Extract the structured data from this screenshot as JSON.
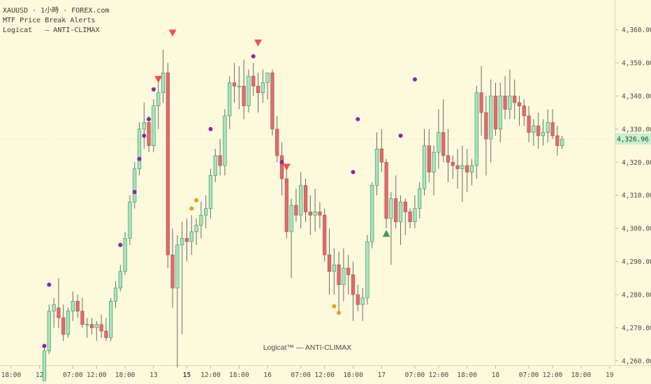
{
  "legend": {
    "symbol_line": "XAUUSD · 1小時 · FOREX.com",
    "indicator_line": "MTF Price Break Alerts",
    "logicat_line": "Logicat   — ANTI-CLIMAX"
  },
  "watermark": "Logicat™ — ANTI-CLIMAX",
  "colors": {
    "background": "#fcf9dc",
    "up": "#a7e4bd",
    "down": "#e26a6a",
    "wick": "#6b6b6b",
    "purple": "#8e24aa",
    "orange": "#f39c12",
    "red_marker": "#ef5350",
    "green_marker": "#43a047",
    "price_label_bg": "#c8f0d0"
  },
  "chart_data": {
    "type": "candlestick",
    "symbol": "XAUUSD",
    "interval": "1小時",
    "exchange": "FOREX.com",
    "ylim": [
      4253,
      4369
    ],
    "yticks": [
      4260,
      4270,
      4280,
      4290,
      4300,
      4310,
      4320,
      4330,
      4340,
      4350,
      4360
    ],
    "ytick_labels": [
      "4,260.00",
      "4,270.00",
      "4,280.00",
      "4,290.00",
      "4,300.00",
      "4,310.00",
      "4,320.00",
      "4,330.00",
      "4,340.00",
      "4,350.00",
      "4,360.00"
    ],
    "xticks": [
      {
        "label": "18:00",
        "index": -7,
        "bold": false
      },
      {
        "label": "12",
        "index": -1,
        "bold": false
      },
      {
        "label": "07:00",
        "index": 6,
        "bold": false
      },
      {
        "label": "12:00",
        "index": 11,
        "bold": false
      },
      {
        "label": "18:00",
        "index": 17,
        "bold": false
      },
      {
        "label": "13",
        "index": 23,
        "bold": false
      },
      {
        "label": "15",
        "index": 30,
        "bold": true
      },
      {
        "label": "12:00",
        "index": 35,
        "bold": false
      },
      {
        "label": "18:00",
        "index": 41,
        "bold": false
      },
      {
        "label": "16",
        "index": 47,
        "bold": false
      },
      {
        "label": "07:00",
        "index": 54,
        "bold": false
      },
      {
        "label": "12:00",
        "index": 59,
        "bold": false
      },
      {
        "label": "18:00",
        "index": 65,
        "bold": false
      },
      {
        "label": "17",
        "index": 71,
        "bold": false
      },
      {
        "label": "07:00",
        "index": 78,
        "bold": false
      },
      {
        "label": "12:00",
        "index": 83,
        "bold": false
      },
      {
        "label": "18:00",
        "index": 89,
        "bold": false
      },
      {
        "label": "18",
        "index": 95,
        "bold": false
      },
      {
        "label": "07:00",
        "index": 102,
        "bold": false
      },
      {
        "label": "12:00",
        "index": 107,
        "bold": false
      },
      {
        "label": "18:00",
        "index": 113,
        "bold": false
      },
      {
        "label": "19",
        "index": 119,
        "bold": false
      }
    ],
    "last_price": "4,326.96",
    "candles": [
      [
        4254,
        4264,
        4254,
        4263
      ],
      [
        4263,
        4277,
        4262,
        4275
      ],
      [
        4275,
        4279,
        4270,
        4277
      ],
      [
        4276,
        4285,
        4270,
        4273
      ],
      [
        4273,
        4277,
        4266,
        4268
      ],
      [
        4268,
        4276,
        4267,
        4275
      ],
      [
        4275,
        4281,
        4272,
        4278
      ],
      [
        4278,
        4280,
        4273,
        4275
      ],
      [
        4275,
        4279,
        4270,
        4271
      ],
      [
        4271,
        4273,
        4267,
        4271
      ],
      [
        4271,
        4273,
        4268,
        4270
      ],
      [
        4270,
        4272,
        4266,
        4271
      ],
      [
        4271,
        4274,
        4267,
        4269
      ],
      [
        4269,
        4273,
        4266,
        4267
      ],
      [
        4267,
        4279,
        4266,
        4278
      ],
      [
        4278,
        4284,
        4276,
        4282
      ],
      [
        4282,
        4289,
        4281,
        4287
      ],
      [
        4287,
        4299,
        4286,
        4297
      ],
      [
        4297,
        4310,
        4295,
        4308
      ],
      [
        4308,
        4320,
        4306,
        4318
      ],
      [
        4318,
        4332,
        4316,
        4330
      ],
      [
        4330,
        4338,
        4324,
        4332
      ],
      [
        4332,
        4334,
        4323,
        4325
      ],
      [
        4325,
        4339,
        4323,
        4337
      ],
      [
        4337,
        4345,
        4330,
        4341
      ],
      [
        4341,
        4354,
        4338,
        4347
      ],
      [
        4347,
        4350,
        4288,
        4292
      ],
      [
        4292,
        4300,
        4276,
        4282
      ],
      [
        4282,
        4298,
        4258,
        4295
      ],
      [
        4295,
        4302,
        4268,
        4297
      ],
      [
        4297,
        4303,
        4290,
        4296
      ],
      [
        4296,
        4304,
        4292,
        4299
      ],
      [
        4299,
        4303,
        4295,
        4301
      ],
      [
        4301,
        4308,
        4297,
        4304
      ],
      [
        4304,
        4310,
        4300,
        4306
      ],
      [
        4306,
        4318,
        4303,
        4316
      ],
      [
        4316,
        4324,
        4314,
        4322
      ],
      [
        4322,
        4327,
        4316,
        4319
      ],
      [
        4319,
        4336,
        4316,
        4334
      ],
      [
        4334,
        4346,
        4330,
        4344
      ],
      [
        4344,
        4350,
        4338,
        4343
      ],
      [
        4343,
        4349,
        4336,
        4343
      ],
      [
        4343,
        4351,
        4333,
        4337
      ],
      [
        4337,
        4348,
        4335,
        4346
      ],
      [
        4346,
        4350,
        4340,
        4343
      ],
      [
        4343,
        4347,
        4335,
        4341
      ],
      [
        4341,
        4348,
        4338,
        4344
      ],
      [
        4344,
        4347,
        4339,
        4347
      ],
      [
        4347,
        4348,
        4328,
        4330
      ],
      [
        4330,
        4334,
        4320,
        4322
      ],
      [
        4322,
        4326,
        4310,
        4315
      ],
      [
        4315,
        4319,
        4297,
        4299
      ],
      [
        4299,
        4309,
        4285,
        4307
      ],
      [
        4307,
        4312,
        4302,
        4304
      ],
      [
        4304,
        4317,
        4300,
        4313
      ],
      [
        4313,
        4315,
        4302,
        4305
      ],
      [
        4305,
        4310,
        4298,
        4304
      ],
      [
        4304,
        4312,
        4299,
        4305
      ],
      [
        4305,
        4308,
        4300,
        4304
      ],
      [
        4304,
        4306,
        4290,
        4292
      ],
      [
        4292,
        4300,
        4280,
        4287
      ],
      [
        4287,
        4294,
        4280,
        4289
      ],
      [
        4289,
        4293,
        4274,
        4283
      ],
      [
        4283,
        4294,
        4278,
        4288
      ],
      [
        4288,
        4292,
        4280,
        4286
      ],
      [
        4286,
        4290,
        4272,
        4280
      ],
      [
        4280,
        4283,
        4275,
        4277
      ],
      [
        4277,
        4282,
        4272,
        4279
      ],
      [
        4279,
        4298,
        4277,
        4296
      ],
      [
        4296,
        4314,
        4294,
        4313
      ],
      [
        4313,
        4329,
        4310,
        4324
      ],
      [
        4324,
        4330,
        4317,
        4320
      ],
      [
        4320,
        4321,
        4300,
        4303
      ],
      [
        4303,
        4311,
        4289,
        4309
      ],
      [
        4309,
        4316,
        4300,
        4302
      ],
      [
        4302,
        4310,
        4295,
        4308
      ],
      [
        4308,
        4309,
        4298,
        4305
      ],
      [
        4305,
        4306,
        4300,
        4302
      ],
      [
        4302,
        4310,
        4300,
        4306
      ],
      [
        4306,
        4314,
        4303,
        4312
      ],
      [
        4312,
        4330,
        4310,
        4325
      ],
      [
        4325,
        4330,
        4314,
        4317
      ],
      [
        4317,
        4325,
        4310,
        4323
      ],
      [
        4323,
        4336,
        4318,
        4329
      ],
      [
        4329,
        4339,
        4320,
        4322
      ],
      [
        4322,
        4330,
        4314,
        4320
      ],
      [
        4320,
        4322,
        4315,
        4319
      ],
      [
        4319,
        4324,
        4312,
        4318
      ],
      [
        4318,
        4325,
        4308,
        4319
      ],
      [
        4319,
        4324,
        4311,
        4317
      ],
      [
        4317,
        4321,
        4313,
        4319
      ],
      [
        4319,
        4343,
        4315,
        4341
      ],
      [
        4341,
        4349,
        4328,
        4335
      ],
      [
        4335,
        4340,
        4316,
        4327
      ],
      [
        4327,
        4345,
        4320,
        4340
      ],
      [
        4340,
        4344,
        4328,
        4330
      ],
      [
        4330,
        4344,
        4326,
        4340
      ],
      [
        4340,
        4346,
        4333,
        4336
      ],
      [
        4336,
        4348,
        4333,
        4340
      ],
      [
        4340,
        4345,
        4333,
        4338
      ],
      [
        4338,
        4340,
        4331,
        4337
      ],
      [
        4337,
        4339,
        4331,
        4334
      ],
      [
        4334,
        4337,
        4326,
        4329
      ],
      [
        4329,
        4333,
        4325,
        4331
      ],
      [
        4331,
        4335,
        4324,
        4328
      ],
      [
        4328,
        4333,
        4325,
        4329
      ],
      [
        4329,
        4336,
        4326,
        4332
      ],
      [
        4332,
        4336,
        4327,
        4328
      ],
      [
        4328,
        4331,
        4322,
        4325
      ],
      [
        4325,
        4328,
        4324,
        4327
      ]
    ],
    "markers": [
      {
        "index": 0,
        "price": 4264.5,
        "shape": "dot",
        "color": "purple"
      },
      {
        "index": 1,
        "price": 4283,
        "shape": "dot",
        "color": "purple"
      },
      {
        "index": 16,
        "price": 4295,
        "shape": "dot",
        "color": "purple"
      },
      {
        "index": 19,
        "price": 4311,
        "shape": "dot",
        "color": "purple"
      },
      {
        "index": 20,
        "price": 4321,
        "shape": "dot",
        "color": "purple"
      },
      {
        "index": 21,
        "price": 4328,
        "shape": "dot",
        "color": "purple"
      },
      {
        "index": 22,
        "price": 4333,
        "shape": "dot",
        "color": "purple"
      },
      {
        "index": 23,
        "price": 4342,
        "shape": "dot",
        "color": "purple"
      },
      {
        "index": 24,
        "price": 4345,
        "shape": "triangle-down",
        "color": "red"
      },
      {
        "index": 27,
        "price": 4359,
        "shape": "triangle-down",
        "color": "red"
      },
      {
        "index": 31,
        "price": 4306,
        "shape": "dot",
        "color": "orange"
      },
      {
        "index": 32,
        "price": 4308.5,
        "shape": "dot",
        "color": "orange"
      },
      {
        "index": 35,
        "price": 4330,
        "shape": "dot",
        "color": "purple"
      },
      {
        "index": 44,
        "price": 4352,
        "shape": "dot",
        "color": "purple"
      },
      {
        "index": 45,
        "price": 4356,
        "shape": "triangle-down",
        "color": "red"
      },
      {
        "index": 50,
        "price": 4320,
        "shape": "dot",
        "color": "purple"
      },
      {
        "index": 51,
        "price": 4318.5,
        "shape": "triangle-down",
        "color": "red"
      },
      {
        "index": 61,
        "price": 4276.5,
        "shape": "dot",
        "color": "orange"
      },
      {
        "index": 62,
        "price": 4274.5,
        "shape": "dot",
        "color": "orange"
      },
      {
        "index": 65,
        "price": 4317,
        "shape": "dot",
        "color": "purple"
      },
      {
        "index": 66,
        "price": 4333,
        "shape": "dot",
        "color": "purple"
      },
      {
        "index": 72,
        "price": 4298.5,
        "shape": "triangle-up",
        "color": "green"
      },
      {
        "index": 75,
        "price": 4328,
        "shape": "dot",
        "color": "purple"
      },
      {
        "index": 78,
        "price": 4345,
        "shape": "dot",
        "color": "purple"
      }
    ]
  }
}
